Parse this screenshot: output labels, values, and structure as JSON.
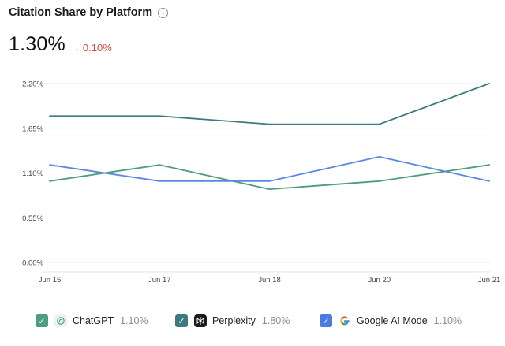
{
  "header": {
    "title": "Citation Share by Platform",
    "info_icon": "info-icon"
  },
  "metric": {
    "value": "1.30%",
    "delta": "0.10%",
    "delta_direction": "down",
    "delta_color": "#d64545"
  },
  "chart_data": {
    "type": "line",
    "categories": [
      "Jun 15",
      "Jun 17",
      "Jun 18",
      "Jun 20",
      "Jun 21"
    ],
    "y_ticks": [
      "2.20%",
      "1.65%",
      "1.10%",
      "0.55%",
      "0.00%"
    ],
    "ylim": [
      0,
      2.2
    ],
    "grid": true,
    "legend_position": "bottom",
    "series": [
      {
        "name": "ChatGPT",
        "color": "#4c9e7c",
        "values": [
          1.0,
          1.2,
          0.9,
          1.0,
          1.2
        ]
      },
      {
        "name": "Perplexity",
        "color": "#3d7a80",
        "values": [
          1.8,
          1.8,
          1.7,
          1.7,
          2.2
        ]
      },
      {
        "name": "Google AI Mode",
        "color": "#5a88e0",
        "values": [
          1.2,
          1.0,
          1.0,
          1.3,
          1.0
        ]
      }
    ]
  },
  "legend": [
    {
      "name": "ChatGPT",
      "value": "1.10%",
      "color": "#4c9e7c",
      "icon": "chatgpt-icon",
      "checked": true
    },
    {
      "name": "Perplexity",
      "value": "1.80%",
      "color": "#3d7a80",
      "icon": "perplexity-icon",
      "checked": true
    },
    {
      "name": "Google AI Mode",
      "value": "1.10%",
      "color": "#4a7be0",
      "icon": "google-icon",
      "checked": true
    }
  ]
}
